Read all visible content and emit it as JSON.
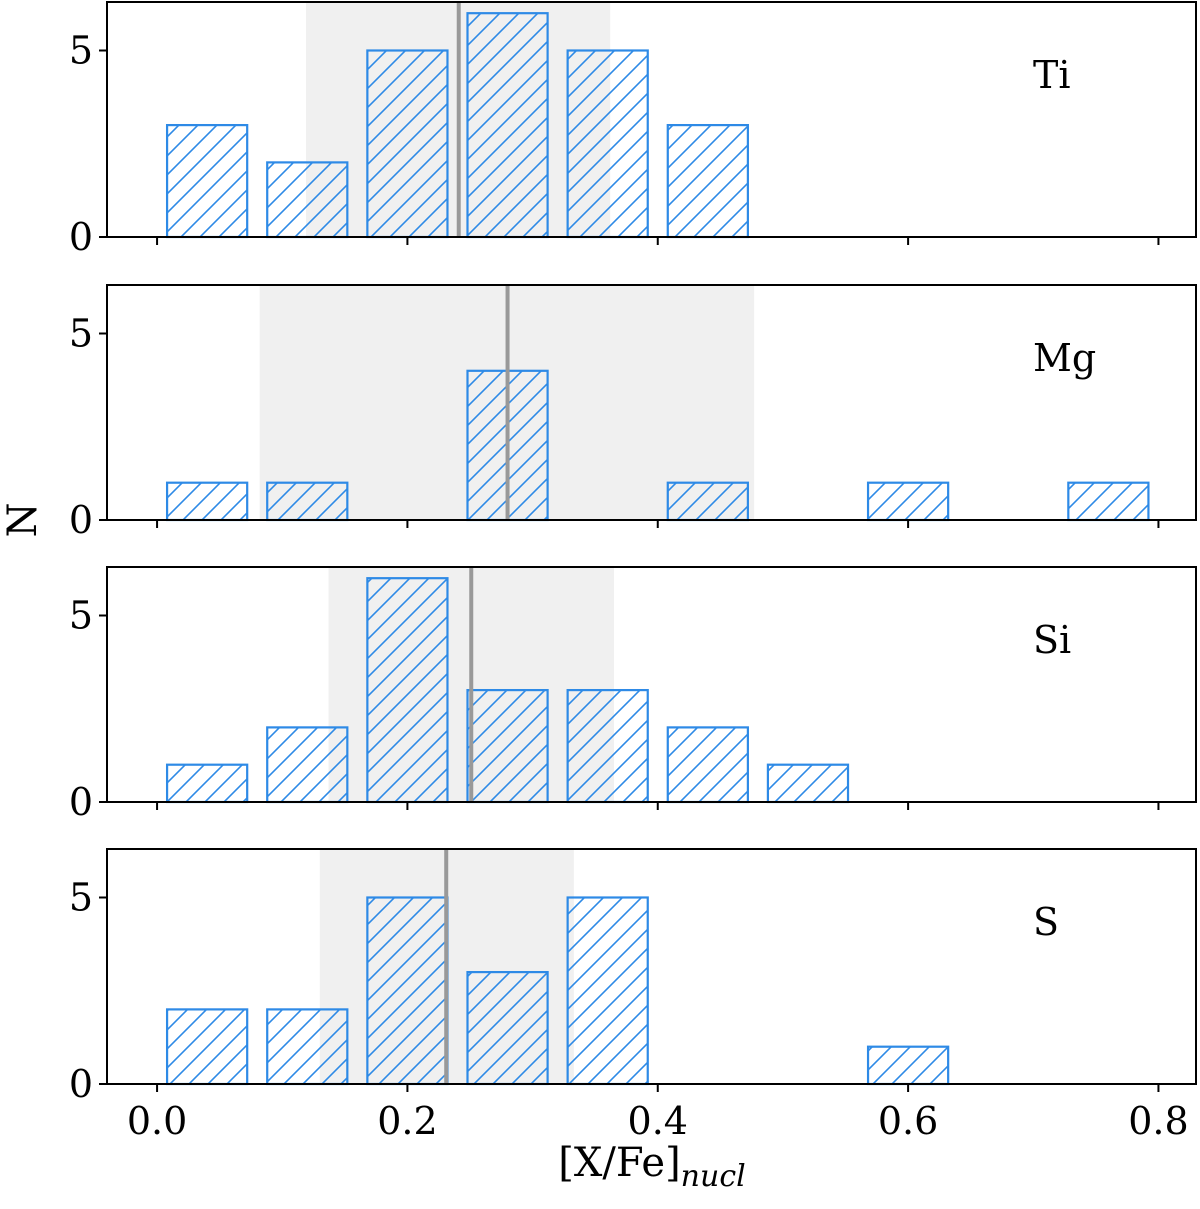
{
  "chart_data": {
    "type": "bar",
    "xlabel": "[X/Fe]",
    "xlabel_subscript": "nucl",
    "ylabel": "N",
    "xlim": [
      -0.04,
      0.83
    ],
    "ylim": [
      0,
      6.3
    ],
    "x_ticks": [
      0.0,
      0.2,
      0.4,
      0.6,
      0.8
    ],
    "x_tick_labels": [
      "0.0",
      "0.2",
      "0.4",
      "0.6",
      "0.8"
    ],
    "y_ticks": [
      0,
      5
    ],
    "y_tick_labels": [
      "0",
      "5"
    ],
    "bin_width": 0.08,
    "bar_width": 0.064,
    "bin_centers": [
      0.04,
      0.12,
      0.2,
      0.28,
      0.36,
      0.44,
      0.52,
      0.6,
      0.68,
      0.76
    ],
    "bar_color": "#2e8ae6",
    "bar_hatch": "diagonal",
    "median_line_color": "#999999",
    "shaded_region_color": "#f0f0f0",
    "grid": false,
    "panels": [
      {
        "label": "Ti",
        "values": [
          3,
          2,
          5,
          6,
          5,
          3,
          0,
          0,
          0,
          0
        ],
        "median": 0.241,
        "band": [
          0.119,
          0.362
        ]
      },
      {
        "label": "Mg",
        "values": [
          1,
          1,
          0,
          4,
          0,
          1,
          0,
          1,
          0,
          1
        ],
        "median": 0.28,
        "band": [
          0.082,
          0.477
        ]
      },
      {
        "label": "Si",
        "values": [
          1,
          2,
          6,
          3,
          3,
          2,
          1,
          0,
          0,
          0
        ],
        "median": 0.251,
        "band": [
          0.137,
          0.365
        ]
      },
      {
        "label": "S",
        "values": [
          2,
          2,
          5,
          3,
          5,
          0,
          0,
          1,
          0,
          0
        ],
        "median": 0.231,
        "band": [
          0.13,
          0.333
        ]
      }
    ]
  }
}
